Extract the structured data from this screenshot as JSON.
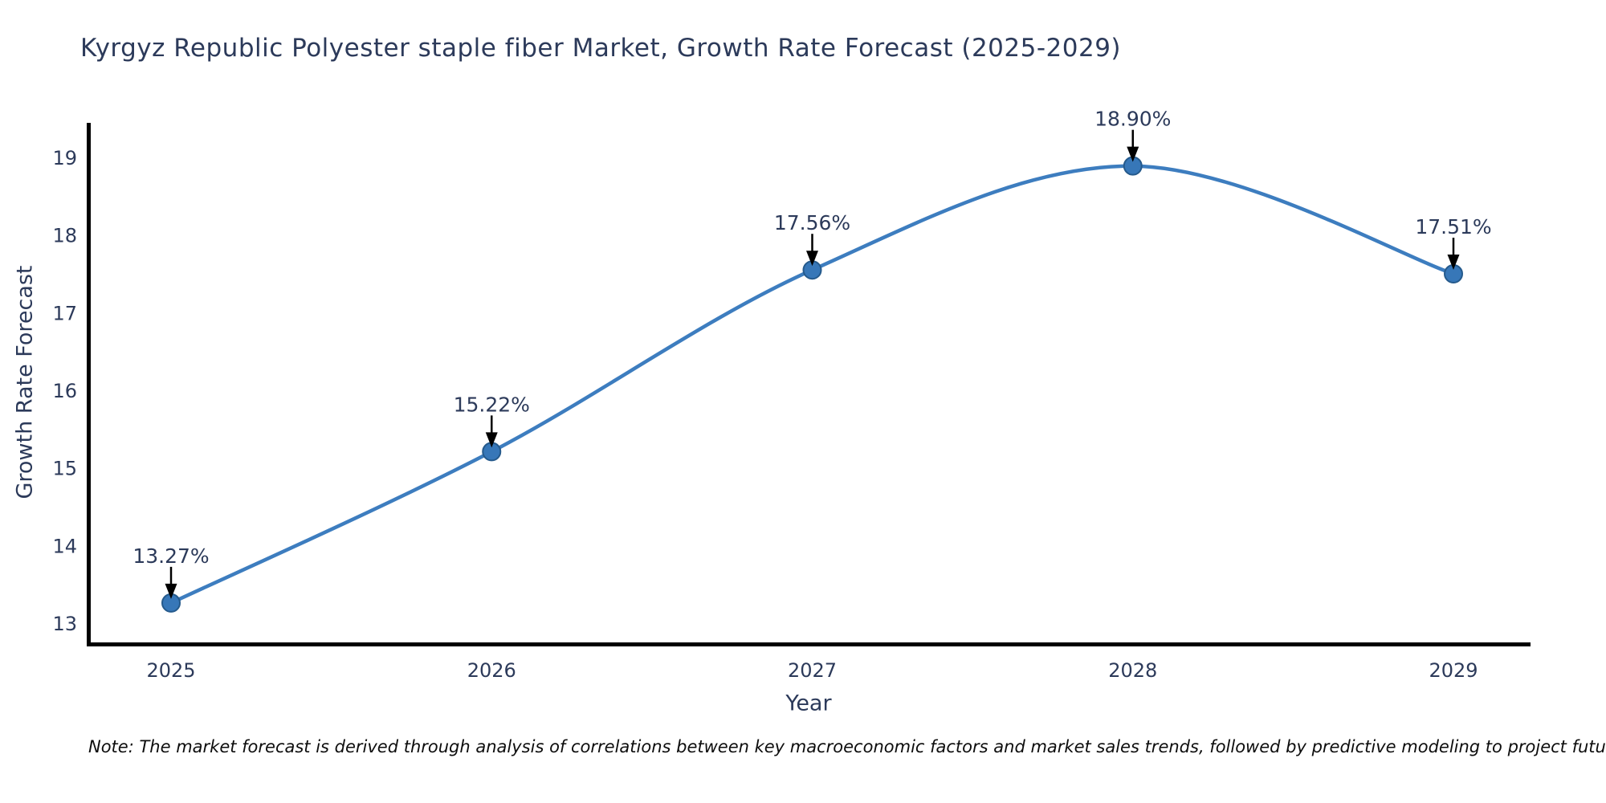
{
  "title": "Kyrgyz Republic Polyester staple fiber Market, Growth Rate Forecast (2025-2029)",
  "note": "Note: The market forecast is derived through analysis of correlations between key macroeconomic factors and market sales trends, followed by predictive modeling to project future sales",
  "chart_data": {
    "type": "line",
    "title": "Kyrgyz Republic Polyester staple fiber Market, Growth Rate Forecast (2025-2029)",
    "xlabel": "Year",
    "ylabel": "Growth Rate Forecast",
    "x": [
      2025,
      2026,
      2027,
      2028,
      2029
    ],
    "series": [
      {
        "name": "Growth Rate Forecast",
        "values": [
          13.27,
          15.22,
          17.56,
          18.9,
          17.51
        ]
      }
    ],
    "point_labels": [
      "13.27%",
      "15.22%",
      "17.56%",
      "18.90%",
      "17.51%"
    ],
    "yticks": [
      13,
      14,
      15,
      16,
      17,
      18,
      19
    ],
    "ylim": [
      12.71,
      19.46
    ],
    "xlim": [
      2024.74,
      2029.24
    ],
    "grid": false,
    "legend_position": "none",
    "smooth": true,
    "line_color": "#3d7dbf",
    "marker_color": "#3777b8",
    "marker_edge_color": "#255a8c",
    "axis_color": "#000000",
    "text_color": "#2c3a5a",
    "annotation_arrow_color": "#000000"
  }
}
